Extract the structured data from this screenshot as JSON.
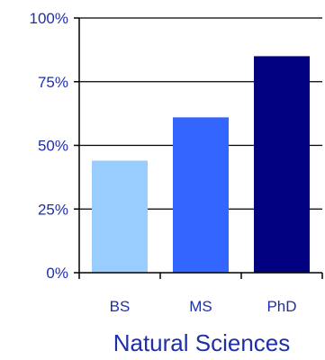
{
  "chart_data": {
    "type": "bar",
    "categories": [
      "BS",
      "MS",
      "PhD"
    ],
    "values": [
      44,
      61,
      85
    ],
    "value_unit": "%",
    "xlabel": "Natural Sciences",
    "ylabel": "",
    "ylim": [
      0,
      100
    ],
    "yticks": [
      "0%",
      "25%",
      "50%",
      "75%",
      "100%"
    ],
    "ytick_values": [
      0,
      25,
      50,
      75,
      100
    ],
    "grid": "horizontal",
    "legend": "none",
    "bar_colors": [
      "#99ccff",
      "#3366ff",
      "#000080"
    ],
    "text_color": "#1f2fa8",
    "axis_color": "#000000"
  }
}
